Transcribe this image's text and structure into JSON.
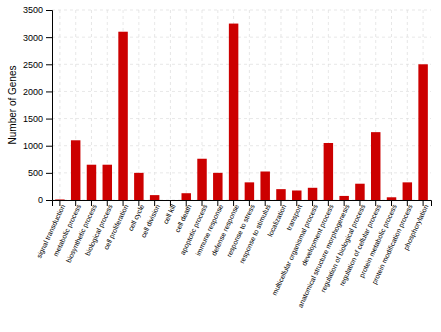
{
  "chart_data": {
    "type": "bar",
    "categories": [
      "signal transduction",
      "metabolic process",
      "biosynthetic process",
      "biological process",
      "cell proliferation",
      "cell cycle",
      "cell division",
      "cell kill",
      "cell death",
      "apoptotic process",
      "immune response",
      "defense response",
      "response to stress",
      "response to stimulus",
      "localization",
      "transport",
      "multicellular organismal process",
      "development process",
      "anatomical structure morphogenesis",
      "regulation of biological process",
      "regulation of cellular process",
      "protein metabolic process",
      "protein modification process",
      "phosphorylation"
    ],
    "values": [
      10,
      1100,
      650,
      650,
      3100,
      500,
      90,
      0,
      125,
      760,
      500,
      3250,
      325,
      525,
      200,
      175,
      225,
      1050,
      75,
      300,
      1250,
      50,
      325,
      2500
    ],
    "color": "#cc0000",
    "ylabel": "Number of Genes",
    "ylim": [
      0,
      3500
    ],
    "yticks": [
      0,
      500,
      1000,
      1500,
      2000,
      2500,
      3000,
      3500
    ],
    "grid": true
  }
}
